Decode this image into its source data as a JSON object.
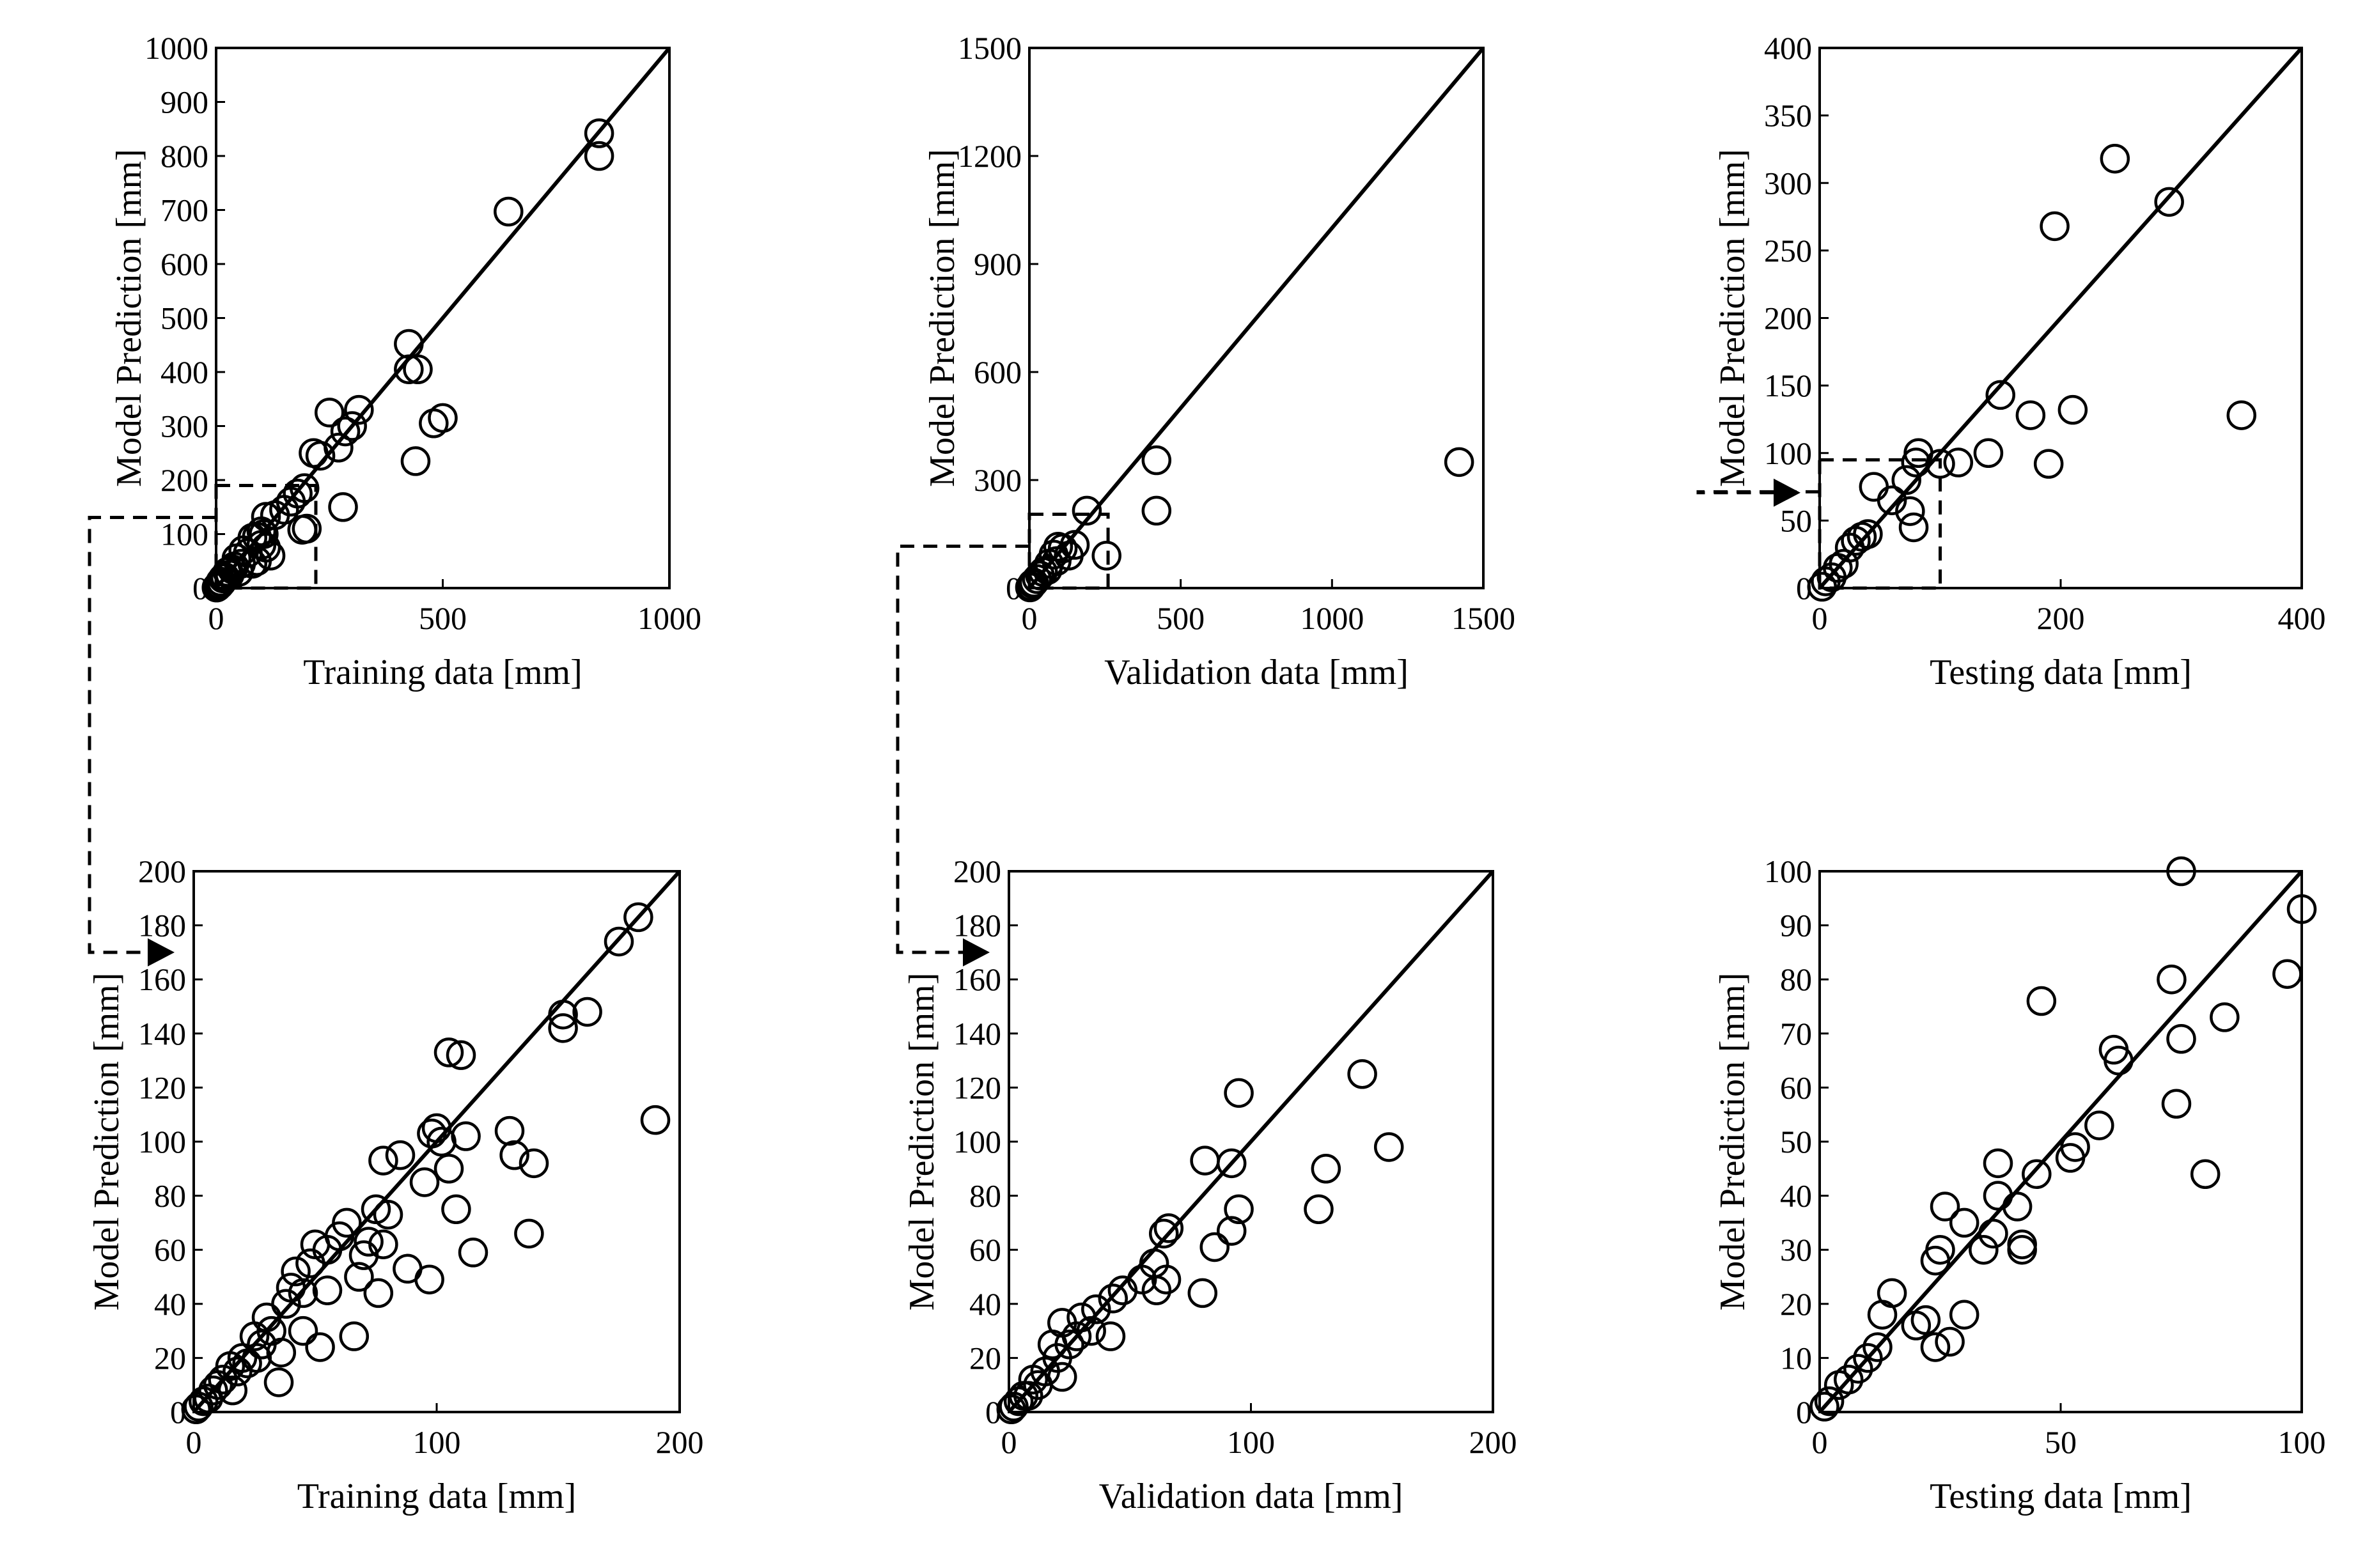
{
  "colors": {
    "ink": "#000000",
    "background": "#ffffff"
  },
  "chart_data": [
    {
      "id": "train-full",
      "type": "scatter",
      "xlabel": "Training data [mm]",
      "ylabel": "Model Prediction [mm]",
      "xlim": [
        0,
        1000
      ],
      "ylim": [
        0,
        1000
      ],
      "xticks": [
        0,
        500,
        1000
      ],
      "yticks": [
        0,
        100,
        200,
        300,
        400,
        500,
        600,
        700,
        800,
        900,
        1000
      ],
      "identity_line": true,
      "zoom_box": [
        0,
        220,
        0,
        190
      ],
      "points": [
        [
          845,
          842
        ],
        [
          845,
          800
        ],
        [
          645,
          697
        ],
        [
          425,
          452
        ],
        [
          425,
          405
        ],
        [
          445,
          405
        ],
        [
          440,
          235
        ],
        [
          480,
          305
        ],
        [
          500,
          315
        ],
        [
          315,
          330
        ],
        [
          300,
          300
        ],
        [
          250,
          325
        ],
        [
          270,
          260
        ],
        [
          285,
          290
        ],
        [
          280,
          150
        ],
        [
          215,
          250
        ],
        [
          230,
          245
        ],
        [
          195,
          185
        ],
        [
          200,
          110
        ],
        [
          180,
          175
        ],
        [
          165,
          160
        ],
        [
          150,
          145
        ],
        [
          130,
          135
        ],
        [
          190,
          108
        ],
        [
          110,
          132
        ],
        [
          105,
          100
        ],
        [
          100,
          105
        ],
        [
          90,
          95
        ],
        [
          80,
          93
        ],
        [
          100,
          80
        ],
        [
          110,
          75
        ],
        [
          120,
          60
        ],
        [
          90,
          50
        ],
        [
          80,
          45
        ],
        [
          70,
          65
        ],
        [
          60,
          70
        ],
        [
          55,
          45
        ],
        [
          50,
          30
        ],
        [
          45,
          55
        ],
        [
          40,
          40
        ],
        [
          35,
          35
        ],
        [
          30,
          25
        ],
        [
          25,
          30
        ],
        [
          20,
          20
        ],
        [
          15,
          18
        ],
        [
          12,
          10
        ],
        [
          10,
          12
        ],
        [
          8,
          6
        ],
        [
          5,
          5
        ],
        [
          3,
          2
        ],
        [
          1,
          1
        ]
      ]
    },
    {
      "id": "val-full",
      "type": "scatter",
      "xlabel": "Validation data [mm]",
      "ylabel": "Model Prediction [mm]",
      "xlim": [
        0,
        1500
      ],
      "ylim": [
        0,
        1500
      ],
      "xticks": [
        0,
        500,
        1000,
        1500
      ],
      "yticks": [
        0,
        300,
        600,
        900,
        1200,
        1500
      ],
      "identity_line": true,
      "zoom_box": [
        0,
        260,
        0,
        205
      ],
      "points": [
        [
          1420,
          350
        ],
        [
          420,
          355
        ],
        [
          420,
          215
        ],
        [
          190,
          215
        ],
        [
          255,
          90
        ],
        [
          150,
          120
        ],
        [
          130,
          90
        ],
        [
          110,
          110
        ],
        [
          95,
          115
        ],
        [
          90,
          75
        ],
        [
          80,
          93
        ],
        [
          65,
          68
        ],
        [
          60,
          50
        ],
        [
          45,
          45
        ],
        [
          35,
          35
        ],
        [
          25,
          25
        ],
        [
          15,
          15
        ],
        [
          10,
          12
        ],
        [
          5,
          5
        ],
        [
          2,
          2
        ]
      ]
    },
    {
      "id": "test-full",
      "type": "scatter",
      "xlabel": "Testing data [mm]",
      "ylabel": "Model Prediction [mm]",
      "xlim": [
        0,
        400
      ],
      "ylim": [
        0,
        400
      ],
      "xticks": [
        0,
        200,
        400
      ],
      "yticks": [
        0,
        50,
        100,
        150,
        200,
        250,
        300,
        350,
        400
      ],
      "identity_line": true,
      "zoom_box": [
        0,
        100,
        0,
        95
      ],
      "points": [
        [
          245,
          318
        ],
        [
          290,
          286
        ],
        [
          195,
          268
        ],
        [
          150,
          143
        ],
        [
          175,
          128
        ],
        [
          210,
          132
        ],
        [
          350,
          128
        ],
        [
          190,
          92
        ],
        [
          140,
          100
        ],
        [
          115,
          93
        ],
        [
          100,
          92
        ],
        [
          82,
          100
        ],
        [
          80,
          93
        ],
        [
          72,
          80
        ],
        [
          78,
          45
        ],
        [
          75,
          57
        ],
        [
          60,
          65
        ],
        [
          45,
          75
        ],
        [
          40,
          40
        ],
        [
          35,
          38
        ],
        [
          30,
          35
        ],
        [
          25,
          30
        ],
        [
          20,
          18
        ],
        [
          15,
          15
        ],
        [
          10,
          8
        ],
        [
          5,
          5
        ],
        [
          2,
          1
        ]
      ]
    },
    {
      "id": "train-zoom",
      "type": "scatter",
      "xlabel": "Training data [mm]",
      "ylabel": "Model Prediction [mm]",
      "xlim": [
        0,
        200
      ],
      "ylim": [
        0,
        200
      ],
      "xticks": [
        0,
        100,
        200
      ],
      "yticks": [
        0,
        20,
        40,
        60,
        80,
        100,
        120,
        140,
        160,
        180,
        200
      ],
      "identity_line": true,
      "points": [
        [
          183,
          183
        ],
        [
          175,
          174
        ],
        [
          162,
          148
        ],
        [
          152,
          142
        ],
        [
          152,
          147
        ],
        [
          190,
          108
        ],
        [
          105,
          133
        ],
        [
          110,
          132
        ],
        [
          130,
          104
        ],
        [
          112,
          102
        ],
        [
          100,
          105
        ],
        [
          102,
          100
        ],
        [
          98,
          103
        ],
        [
          95,
          85
        ],
        [
          105,
          90
        ],
        [
          108,
          75
        ],
        [
          115,
          59
        ],
        [
          132,
          95
        ],
        [
          140,
          92
        ],
        [
          138,
          66
        ],
        [
          97,
          49
        ],
        [
          78,
          93
        ],
        [
          80,
          73
        ],
        [
          78,
          62
        ],
        [
          76,
          44
        ],
        [
          88,
          53
        ],
        [
          85,
          95
        ],
        [
          75,
          75
        ],
        [
          72,
          63
        ],
        [
          70,
          58
        ],
        [
          68,
          50
        ],
        [
          66,
          28
        ],
        [
          63,
          70
        ],
        [
          60,
          65
        ],
        [
          55,
          60
        ],
        [
          55,
          45
        ],
        [
          52,
          24
        ],
        [
          50,
          62
        ],
        [
          48,
          55
        ],
        [
          45,
          44
        ],
        [
          45,
          30
        ],
        [
          42,
          52
        ],
        [
          40,
          46
        ],
        [
          38,
          40
        ],
        [
          36,
          22
        ],
        [
          35,
          11
        ],
        [
          32,
          30
        ],
        [
          30,
          35
        ],
        [
          28,
          25
        ],
        [
          26,
          20
        ],
        [
          25,
          28
        ],
        [
          22,
          18
        ],
        [
          20,
          20
        ],
        [
          18,
          15
        ],
        [
          16,
          8
        ],
        [
          15,
          17
        ],
        [
          12,
          12
        ],
        [
          10,
          10
        ],
        [
          8,
          8
        ],
        [
          6,
          5
        ],
        [
          4,
          4
        ],
        [
          2,
          2
        ],
        [
          1,
          1
        ]
      ]
    },
    {
      "id": "val-zoom",
      "type": "scatter",
      "xlabel": "Validation data [mm]",
      "ylabel": "Model Prediction [mm]",
      "xlim": [
        0,
        200
      ],
      "ylim": [
        0,
        200
      ],
      "xticks": [
        0,
        100,
        200
      ],
      "yticks": [
        0,
        20,
        40,
        60,
        80,
        100,
        120,
        140,
        160,
        180,
        200
      ],
      "identity_line": true,
      "points": [
        [
          146,
          125
        ],
        [
          95,
          118
        ],
        [
          81,
          93
        ],
        [
          92,
          92
        ],
        [
          157,
          98
        ],
        [
          131,
          90
        ],
        [
          128,
          75
        ],
        [
          95,
          75
        ],
        [
          92,
          67
        ],
        [
          85,
          61
        ],
        [
          80,
          44
        ],
        [
          66,
          68
        ],
        [
          64,
          66
        ],
        [
          65,
          49
        ],
        [
          60,
          55
        ],
        [
          61,
          45
        ],
        [
          55,
          49
        ],
        [
          47,
          45
        ],
        [
          43,
          42
        ],
        [
          42,
          28
        ],
        [
          36,
          38
        ],
        [
          34,
          30
        ],
        [
          30,
          35
        ],
        [
          28,
          28
        ],
        [
          25,
          25
        ],
        [
          22,
          33
        ],
        [
          22,
          13
        ],
        [
          20,
          20
        ],
        [
          18,
          25
        ],
        [
          15,
          15
        ],
        [
          12,
          10
        ],
        [
          10,
          12
        ],
        [
          8,
          6
        ],
        [
          6,
          6
        ],
        [
          4,
          4
        ],
        [
          2,
          2
        ],
        [
          1,
          1
        ]
      ]
    },
    {
      "id": "test-zoom",
      "type": "scatter",
      "xlabel": "Testing data [mm]",
      "ylabel": "Model Prediction [mm]",
      "xlim": [
        0,
        100
      ],
      "ylim": [
        0,
        100
      ],
      "xticks": [
        0,
        50,
        100
      ],
      "yticks": [
        0,
        10,
        20,
        30,
        40,
        50,
        60,
        70,
        80,
        90,
        100
      ],
      "identity_line": true,
      "points": [
        [
          75,
          100
        ],
        [
          100,
          93
        ],
        [
          97,
          81
        ],
        [
          73,
          80
        ],
        [
          84,
          73
        ],
        [
          46,
          76
        ],
        [
          75,
          69
        ],
        [
          61,
          67
        ],
        [
          62,
          65
        ],
        [
          74,
          57
        ],
        [
          58,
          53
        ],
        [
          80,
          44
        ],
        [
          53,
          49
        ],
        [
          52,
          47
        ],
        [
          45,
          44
        ],
        [
          37,
          46
        ],
        [
          37,
          40
        ],
        [
          41,
          38
        ],
        [
          42,
          31
        ],
        [
          42,
          30
        ],
        [
          36,
          33
        ],
        [
          34,
          30
        ],
        [
          30,
          35
        ],
        [
          30,
          18
        ],
        [
          26,
          38
        ],
        [
          25,
          30
        ],
        [
          24,
          28
        ],
        [
          22,
          17
        ],
        [
          24,
          12
        ],
        [
          27,
          13
        ],
        [
          20,
          16
        ],
        [
          15,
          22
        ],
        [
          13,
          18
        ],
        [
          12,
          12
        ],
        [
          10,
          10
        ],
        [
          8,
          8
        ],
        [
          6,
          6
        ],
        [
          4,
          5
        ],
        [
          2,
          2
        ],
        [
          1,
          1
        ]
      ]
    }
  ]
}
